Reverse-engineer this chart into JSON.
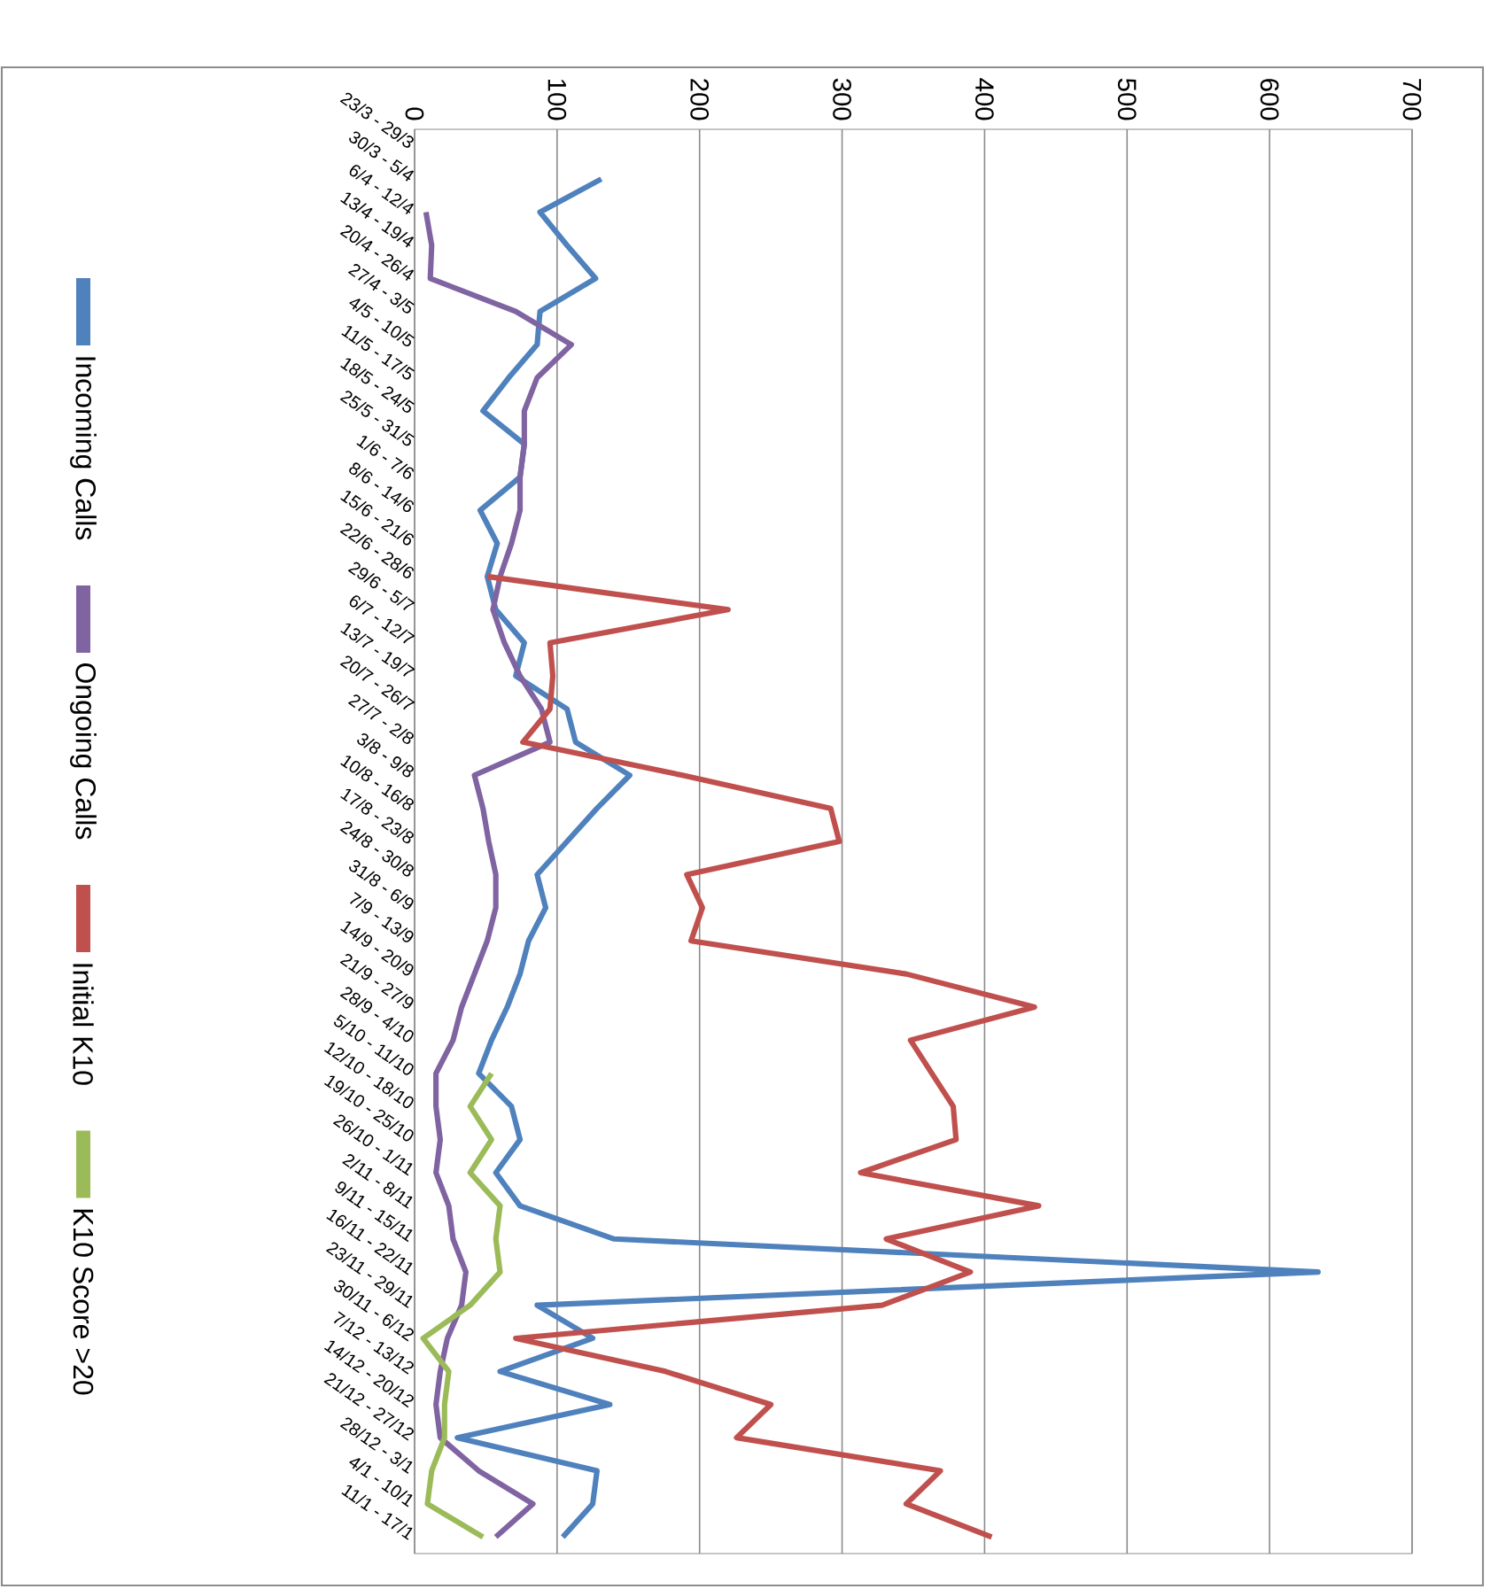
{
  "chart_data": {
    "type": "line",
    "orientation": "horizontal",
    "categories": [
      "23/3 - 29/3",
      "30/3 - 5/4",
      "6/4 - 12/4",
      "13/4 - 19/4",
      "20/4 - 26/4",
      "27/4 - 3/5",
      "4/5 - 10/5",
      "11/5 - 17/5",
      "18/5 - 24/5",
      "25/5 - 31/5",
      "1/6 - 7/6",
      "8/6 - 14/6",
      "15/6 - 21/6",
      "22/6 - 28/6",
      "29/6 - 5/7",
      "6/7 - 12/7",
      "13/7 - 19/7",
      "20/7 - 26/7",
      "27/7 - 2/8",
      "3/8 - 9/8",
      "10/8 - 16/8",
      "17/8 - 23/8",
      "24/8 - 30/8",
      "31/8 - 6/9",
      "7/9 - 13/9",
      "14/9 - 20/9",
      "21/9 - 27/9",
      "28/9 - 4/10",
      "5/10 - 11/10",
      "12/10 - 18/10",
      "19/10 - 25/10",
      "26/10 - 1/11",
      "2/11 - 8/11",
      "9/11 - 15/11",
      "16/11 - 22/11",
      "23/11 - 29/11",
      "30/11 - 6/12",
      "7/12 - 13/12",
      "14/12 - 20/12",
      "21/12 - 27/12",
      "28/12 - 3/1",
      "4/1 - 10/1",
      "11/1 - 17/1"
    ],
    "series": [
      {
        "name": "Incoming Calls",
        "color": "#4f81bd",
        "values": [
          null,
          131,
          88,
          107,
          127,
          88,
          86,
          66,
          48,
          77,
          74,
          46,
          58,
          51,
          57,
          77,
          71,
          107,
          113,
          151,
          128,
          107,
          86,
          92,
          80,
          74,
          65,
          54,
          45,
          68,
          74,
          57,
          74,
          140,
          634,
          86,
          125,
          60,
          137,
          30,
          128,
          125,
          104
        ]
      },
      {
        "name": "Ongoing Calls",
        "color": "#8064a2",
        "values": [
          null,
          null,
          8,
          12,
          11,
          71,
          110,
          86,
          77,
          77,
          74,
          74,
          68,
          60,
          55,
          63,
          74,
          89,
          95,
          42,
          48,
          52,
          57,
          57,
          51,
          42,
          33,
          27,
          15,
          15,
          18,
          15,
          24,
          27,
          36,
          33,
          23,
          18,
          15,
          18,
          45,
          83,
          57
        ]
      },
      {
        "name": "Initial K10",
        "color": "#c0504d",
        "values": [
          null,
          null,
          null,
          null,
          null,
          null,
          null,
          null,
          null,
          null,
          null,
          null,
          null,
          51,
          220,
          95,
          97,
          95,
          76,
          188,
          292,
          298,
          191,
          202,
          194,
          345,
          435,
          348,
          363,
          378,
          380,
          313,
          438,
          331,
          390,
          328,
          71,
          176,
          250,
          226,
          369,
          345,
          405
        ]
      },
      {
        "name": "K10 Score >20",
        "color": "#9bbb59",
        "values": [
          null,
          null,
          null,
          null,
          null,
          null,
          null,
          null,
          null,
          null,
          null,
          null,
          null,
          null,
          null,
          null,
          null,
          null,
          null,
          null,
          null,
          null,
          null,
          null,
          null,
          null,
          null,
          null,
          54,
          39,
          54,
          39,
          60,
          57,
          60,
          39,
          6,
          24,
          21,
          21,
          12,
          9,
          48
        ]
      }
    ],
    "xlim": [
      0,
      700
    ],
    "xticks": [
      0,
      100,
      200,
      300,
      400,
      500,
      600,
      700
    ],
    "grid": "x",
    "legend": "left"
  }
}
